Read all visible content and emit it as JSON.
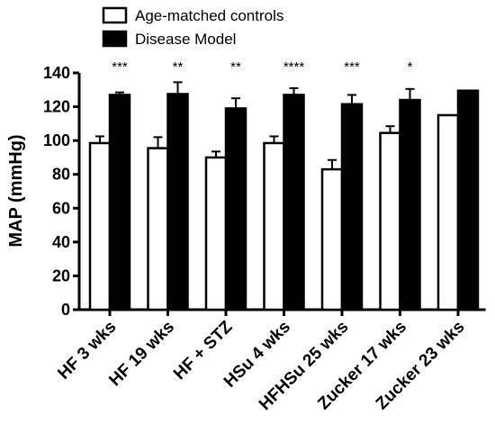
{
  "chart_data": {
    "type": "bar",
    "ylabel": "MAP (mmHg)",
    "ylim": [
      0,
      140
    ],
    "yticks": [
      0,
      20,
      40,
      60,
      80,
      100,
      120,
      140
    ],
    "categories": [
      "HF 3 wks",
      "HF 19 wks",
      "HF + STZ",
      "HSu 4 wks",
      "HFHSu 25 wks",
      "Zucker 17 wks",
      "Zucker 23 wks"
    ],
    "series": [
      {
        "name": "Age-matched controls",
        "fill": "#ffffff",
        "values": [
          98.5,
          95.5,
          90,
          98.5,
          83,
          104.5,
          115
        ],
        "errors": [
          4,
          6.5,
          3.5,
          4,
          5.5,
          4,
          0
        ]
      },
      {
        "name": "Disease Model",
        "fill": "#000000",
        "values": [
          127,
          127.5,
          119,
          127,
          121.5,
          124,
          129.5
        ],
        "errors": [
          1.5,
          7,
          6,
          4,
          5.5,
          6.5,
          0
        ]
      }
    ],
    "significance": [
      "***",
      "**",
      "**",
      "****",
      "***",
      "*",
      ""
    ],
    "legend_position": "top-left",
    "grid": false
  }
}
